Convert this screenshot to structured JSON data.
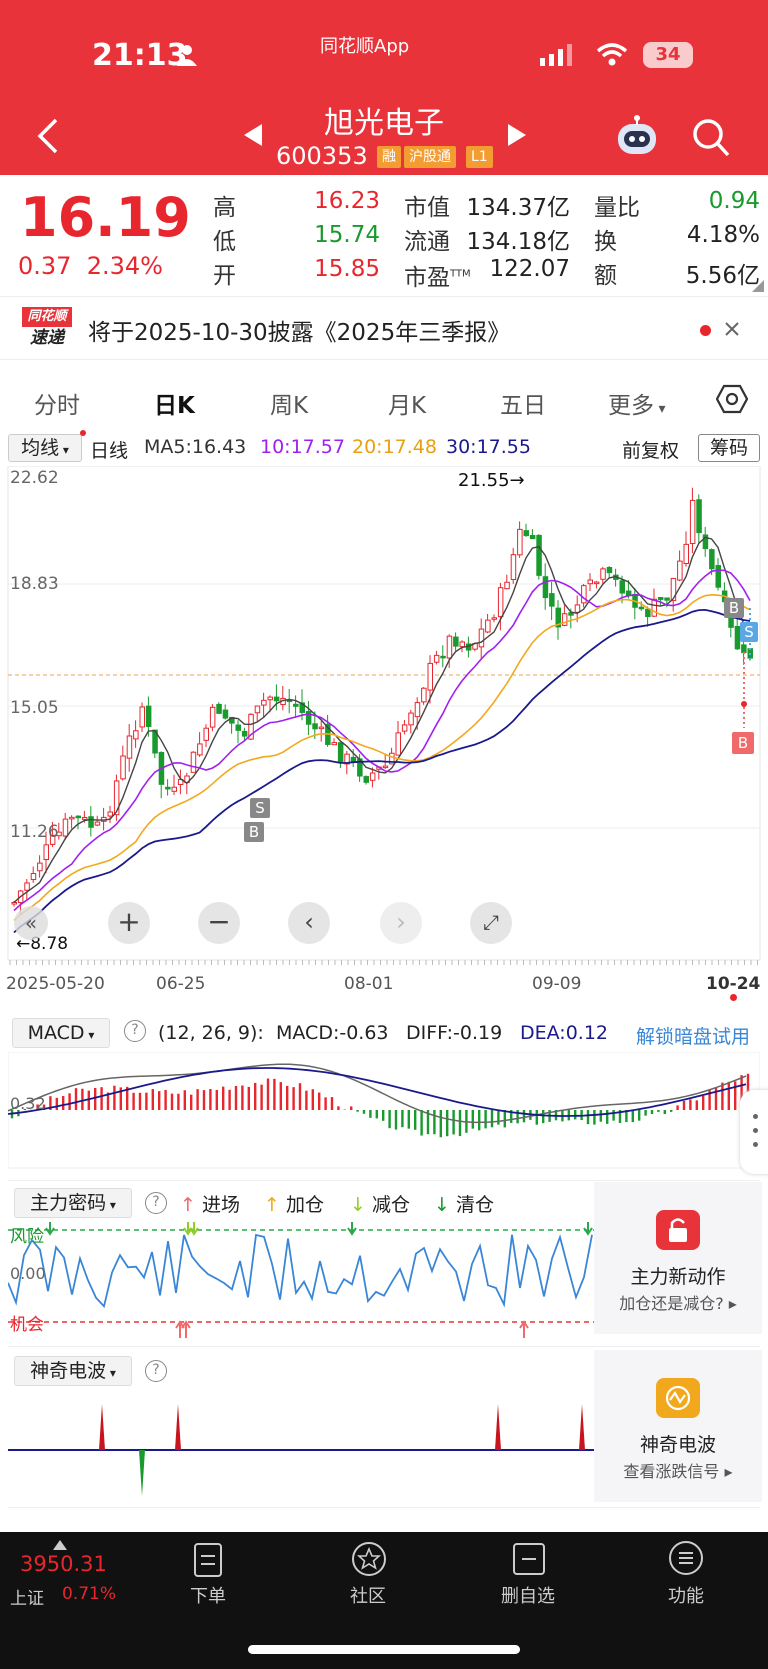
{
  "status": {
    "time": "21:13",
    "app_label": "同花顺App",
    "battery": "34"
  },
  "header": {
    "title": "旭光电子",
    "code": "600353",
    "tags": [
      "融",
      "沪股通",
      "L1"
    ]
  },
  "quote": {
    "price": "16.19",
    "change": "0.37",
    "change_pct": "2.34%",
    "rows": [
      {
        "l1": "高",
        "v1": "16.23",
        "l2": "市值",
        "v2": "134.37亿",
        "l3": "量比",
        "v3": "0.94"
      },
      {
        "l1": "低",
        "v1": "15.74",
        "l2": "流通",
        "v2": "134.18亿",
        "l3": "换",
        "v3": "4.18%"
      },
      {
        "l1": "开",
        "v1": "15.85",
        "l2": "市盈",
        "l2sup": "TTM",
        "v2": "122.07",
        "l3": "额",
        "v3": "5.56亿"
      }
    ]
  },
  "news": {
    "logo_top": "同花顺",
    "logo_bottom": "速递",
    "text": "将于2025-10-30披露《2025年三季报》"
  },
  "tabs": [
    "分时",
    "日K",
    "周K",
    "月K",
    "五日",
    "更多"
  ],
  "legend": {
    "indicator": "均线",
    "period": "日线",
    "ma5": "MA5:16.43",
    "ma10": "10:17.57",
    "ma20": "20:17.48",
    "ma30": "30:17.55",
    "adjust": "前复权",
    "chip": "筹码"
  },
  "price_axis": [
    "22.62",
    "18.83",
    "15.05",
    "11.26"
  ],
  "annotations": {
    "high": "21.55→",
    "low": "←8.78",
    "signal_s": "S",
    "signal_b": "B"
  },
  "date_axis": [
    "2025-05-20",
    "06-25",
    "08-01",
    "09-09",
    "10-24"
  ],
  "macd": {
    "label": "MACD",
    "params": "(12, 26, 9):",
    "macd": "MACD:-0.63",
    "diff": "DIFF:-0.19",
    "dea": "DEA:0.12",
    "unlock": "解锁暗盘试用",
    "axis": "0.32"
  },
  "main_force": {
    "label": "主力密码",
    "legend": [
      "进场",
      "加仓",
      "减仓",
      "清仓"
    ],
    "risk": "风险",
    "zero": "0.00",
    "chance": "机会",
    "card_title": "主力新动作",
    "card_sub": "加仓还是减仓?"
  },
  "magic_wave": {
    "label": "神奇电波",
    "card_title": "神奇电波",
    "card_sub": "查看涨跌信号"
  },
  "bottom": {
    "index_value": "3950.31",
    "index_name": "上证",
    "index_pct": "0.71%",
    "items": [
      "下单",
      "社区",
      "删自选",
      "功能"
    ]
  },
  "colors": {
    "header": "#e8333a",
    "up": "#e8262d",
    "down": "#189a2d",
    "ma5": "#444444",
    "ma10": "#a020f0",
    "ma20": "#f2a81d",
    "ma30": "#1a1a8c"
  }
}
